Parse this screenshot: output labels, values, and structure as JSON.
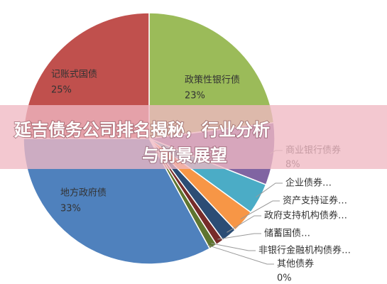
{
  "chart_data": {
    "type": "pie",
    "categories": [
      "政策性银行债",
      "商业银行债券",
      "企业债券…",
      "资产支持证券…",
      "政府支持机构债券…",
      "储蓄国债…",
      "非银行金融机构债券…",
      "其他债券",
      "地方政府债",
      "记账式国债"
    ],
    "values": [
      23,
      8,
      4,
      3,
      2,
      1,
      1,
      0,
      33,
      25
    ],
    "value_labels": [
      "23%",
      "8%",
      null,
      null,
      null,
      null,
      null,
      "0%",
      "33%",
      "25%"
    ],
    "colors": [
      "#9bbb59",
      "#8064a2",
      "#4bacc6",
      "#f79646",
      "#2c4d75",
      "#772c2a",
      "#5f7530",
      "#4d3b62",
      "#4f81bd",
      "#c0504d"
    ]
  },
  "overlay": {
    "line1": "延吉债务公司排名揭秘，行业分析",
    "line2": "与前景展望"
  }
}
